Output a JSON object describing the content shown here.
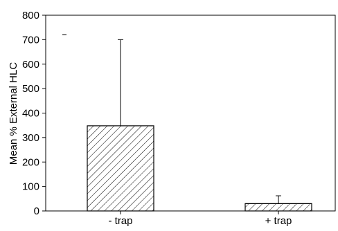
{
  "chart_data": {
    "type": "bar",
    "categories": [
      "- trap",
      "+ trap"
    ],
    "values": [
      348,
      30
    ],
    "error_upper": [
      700,
      62
    ],
    "ylabel": "Mean % External HLC",
    "xlabel": "",
    "ylim": [
      0,
      800
    ],
    "yticks": [
      0,
      100,
      200,
      300,
      400,
      500,
      600,
      700,
      800
    ],
    "grid": false,
    "bar_fill": "diagonal-hatch",
    "colors": {
      "bar_outline": "#000000",
      "hatch": "#000000",
      "axis": "#000000"
    }
  }
}
